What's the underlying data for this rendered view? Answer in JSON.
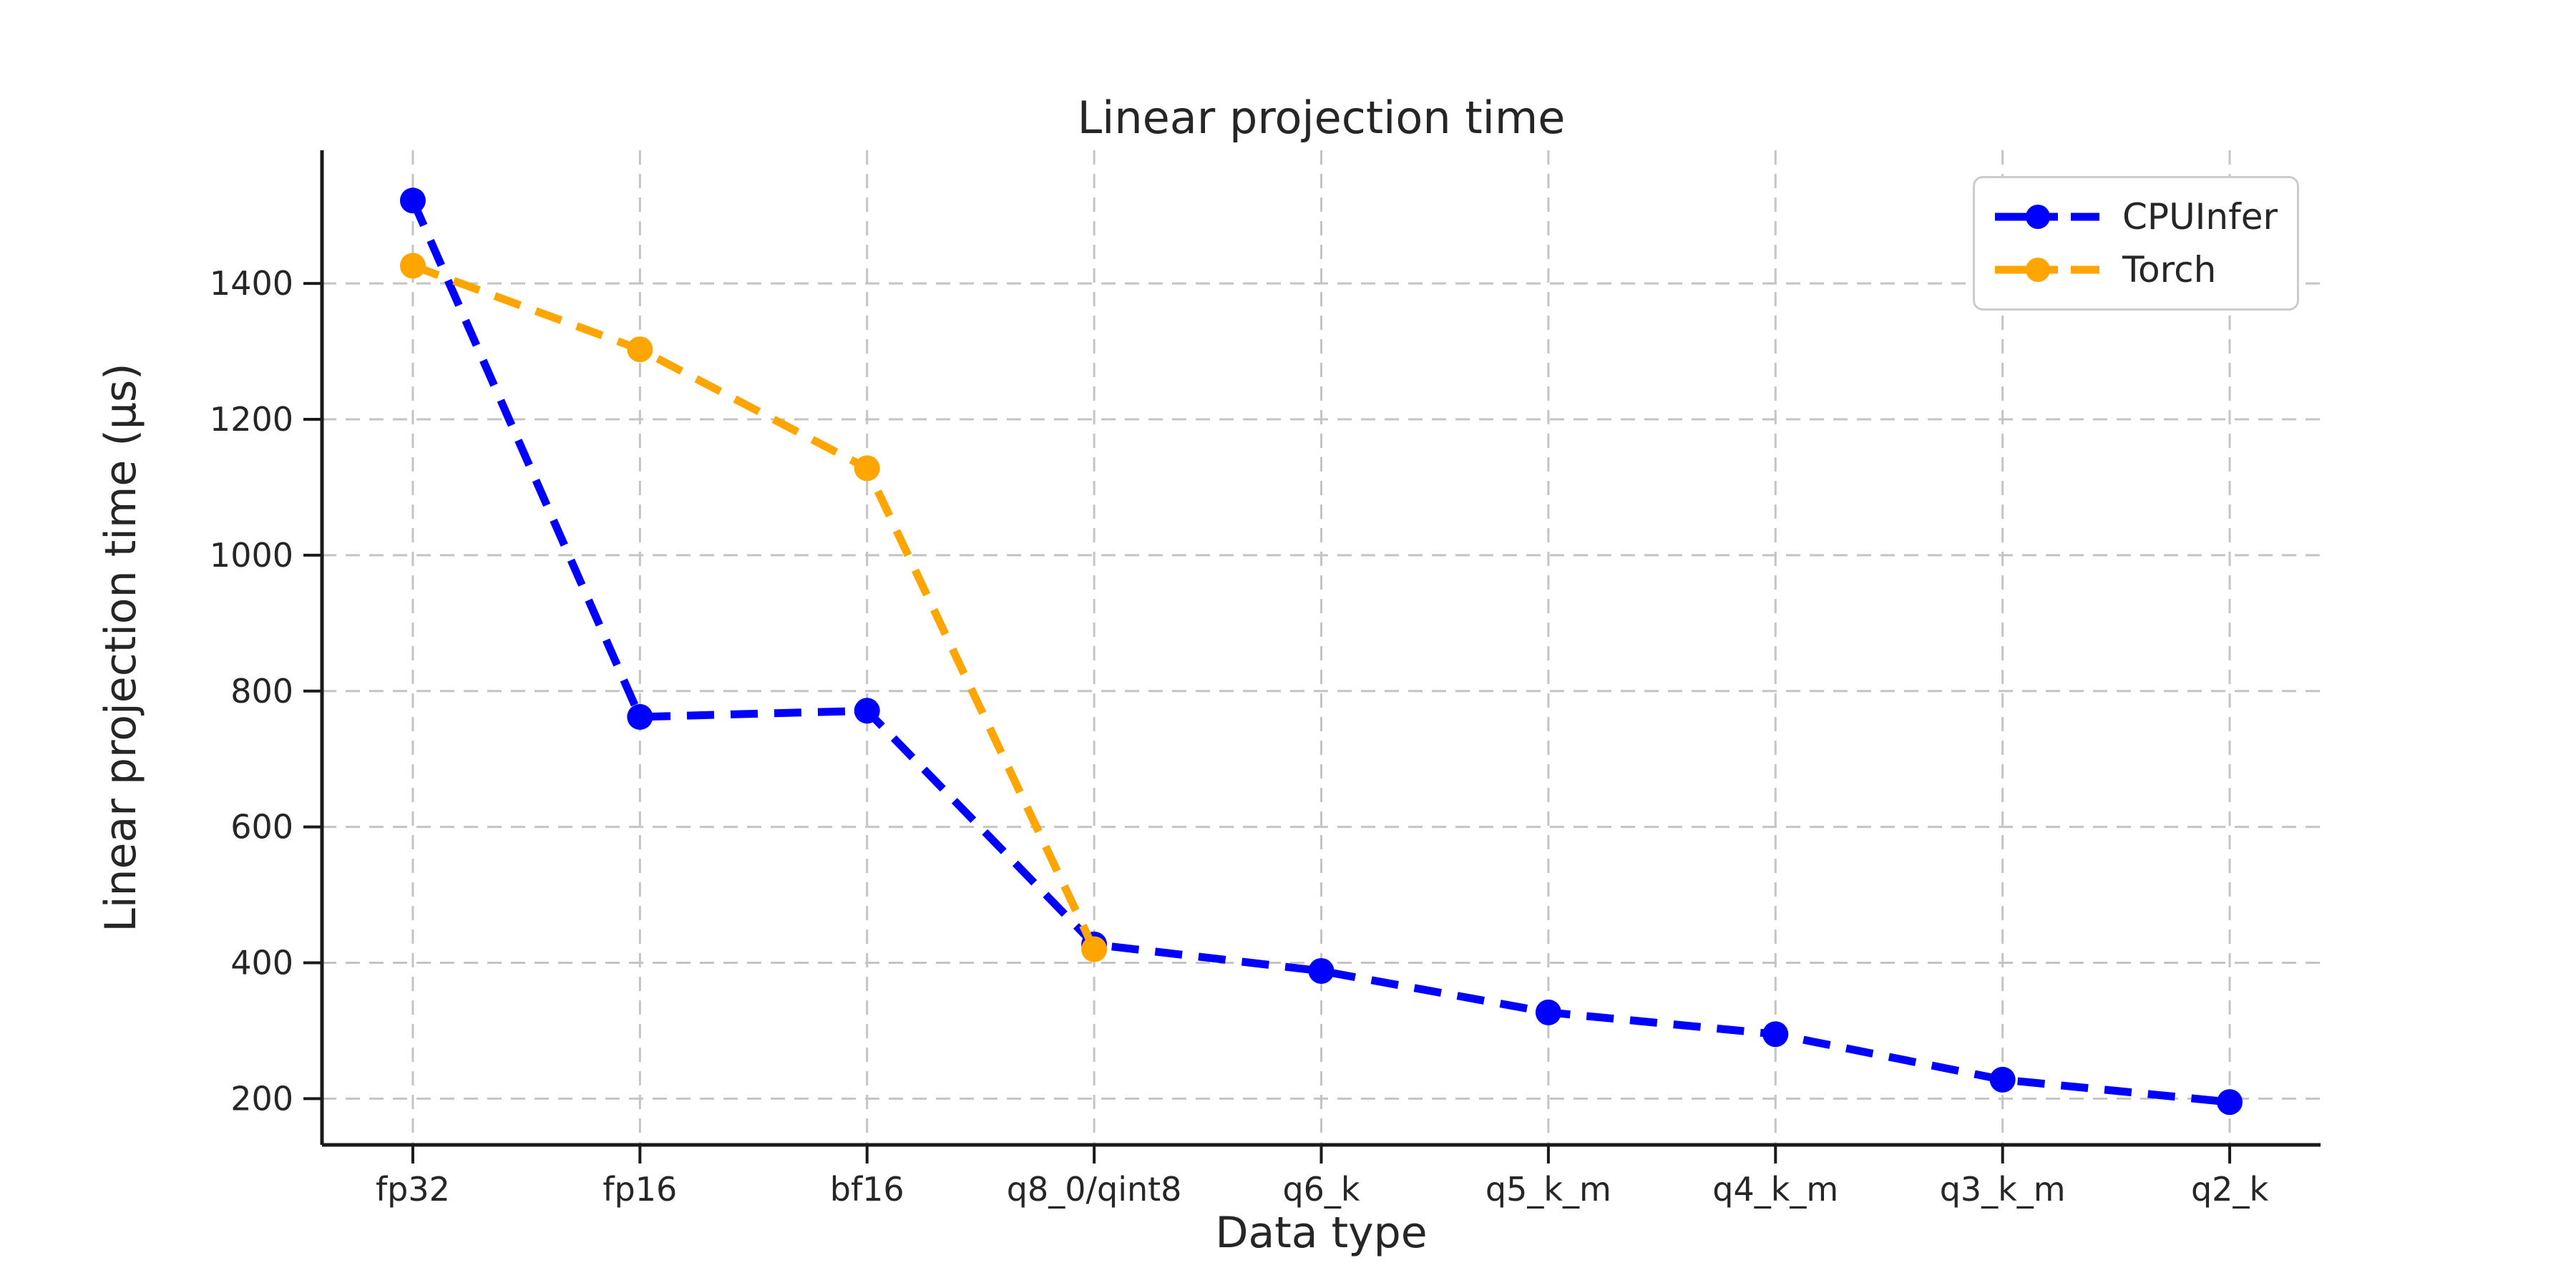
{
  "chart_data": {
    "type": "line",
    "title": "Linear projection time",
    "xlabel": "Data type",
    "ylabel": "Linear projection time (µs)",
    "categories": [
      "fp32",
      "fp16",
      "bf16",
      "q8_0/qint8",
      "q6_k",
      "q5_k_m",
      "q4_k_m",
      "q3_k_m",
      "q2_k"
    ],
    "series": [
      {
        "name": "CPUInfer",
        "color": "#0000ff",
        "values": [
          1522,
          762,
          771,
          427,
          388,
          327,
          295,
          228,
          195
        ]
      },
      {
        "name": "Torch",
        "color": "#ffa500",
        "values": [
          1426,
          1303,
          1128,
          420,
          null,
          null,
          null,
          null,
          null
        ]
      }
    ],
    "yticks": [
      200,
      400,
      600,
      800,
      1000,
      1200,
      1400
    ],
    "ylim": [
      132,
      1596
    ],
    "xlim_index": [
      -0.4,
      8.4
    ],
    "grid": true,
    "grid_style": "dashed",
    "line_style": "dashed",
    "marker": "circle",
    "legend": {
      "position": "upper right",
      "labels": [
        "CPUInfer",
        "Torch"
      ]
    },
    "colors": {
      "grid": "#c4c4c4",
      "spine": "#1a1a1a",
      "text": "#262626",
      "background": "#ffffff"
    }
  }
}
